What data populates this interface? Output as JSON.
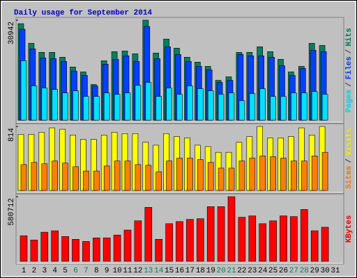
{
  "title": "Daily usage for September 2014",
  "legend_separator": "/",
  "categories": [
    "1",
    "2",
    "3",
    "4",
    "5",
    "6",
    "7",
    "8",
    "9",
    "10",
    "11",
    "12",
    "13",
    "14",
    "15",
    "16",
    "17",
    "18",
    "19",
    "20",
    "21",
    "22",
    "23",
    "24",
    "25",
    "26",
    "27",
    "28",
    "29",
    "30",
    "31"
  ],
  "category_colors": [
    "#000000",
    "#000000",
    "#000000",
    "#000000",
    "#000000",
    "#00805c",
    "#00805c",
    "#000000",
    "#000000",
    "#000000",
    "#000000",
    "#000000",
    "#00805c",
    "#00805c",
    "#000000",
    "#000000",
    "#000000",
    "#000000",
    "#000000",
    "#00805c",
    "#00805c",
    "#000000",
    "#000000",
    "#000000",
    "#000000",
    "#000000",
    "#00805c",
    "#00805c",
    "#000000",
    "#000000",
    "#000000"
  ],
  "chart_data": [
    {
      "type": "bar",
      "ylim": [
        0,
        30942
      ],
      "yticks": [
        30942
      ],
      "series": [
        {
          "name": "Hits",
          "color": "#00805c",
          "values": [
            29860,
            23800,
            20990,
            20990,
            19480,
            16450,
            14930,
            11040,
            18390,
            21210,
            21420,
            20560,
            30942,
            20770,
            25100,
            22290,
            19480,
            17960,
            16660,
            12330,
            13420,
            20990,
            20990,
            22720,
            21210,
            18830,
            14930,
            16660,
            23800,
            23150,
            null
          ]
        },
        {
          "name": "Files",
          "color": "#0040ff",
          "values": [
            28130,
            22070,
            19260,
            19040,
            18180,
            15150,
            13850,
            10600,
            17310,
            18830,
            19910,
            18180,
            29000,
            19040,
            22720,
            20340,
            18180,
            16660,
            15580,
            11690,
            12330,
            20340,
            19910,
            19910,
            19480,
            16880,
            13850,
            16010,
            21640,
            21210,
            null
          ]
        },
        {
          "name": "Pages",
          "color": "#00e0ff",
          "values": [
            18390,
            10600,
            9950,
            9520,
            8440,
            9090,
            7360,
            7360,
            8440,
            8010,
            8440,
            10820,
            11690,
            7360,
            9950,
            8010,
            10600,
            9740,
            9090,
            8010,
            8440,
            6060,
            8220,
            9740,
            7360,
            7360,
            8440,
            8440,
            8870,
            8010,
            null
          ]
        }
      ]
    },
    {
      "type": "bar",
      "ylim": [
        0,
        814
      ],
      "yticks": [
        814
      ],
      "series": [
        {
          "name": "Visits",
          "color": "#ffff00",
          "values": [
            714,
            714,
            741,
            796,
            778,
            705,
            650,
            650,
            705,
            741,
            723,
            723,
            613,
            576,
            723,
            686,
            668,
            576,
            558,
            485,
            485,
            613,
            686,
            814,
            668,
            668,
            686,
            796,
            705,
            814,
            null
          ]
        },
        {
          "name": "Sites",
          "color": "#ff8000",
          "values": [
            329,
            357,
            339,
            375,
            348,
            302,
            247,
            247,
            311,
            375,
            375,
            329,
            320,
            238,
            375,
            412,
            412,
            393,
            357,
            284,
            284,
            375,
            412,
            439,
            430,
            412,
            375,
            375,
            439,
            485,
            null
          ]
        }
      ]
    },
    {
      "type": "bar",
      "ylim": [
        0,
        580712
      ],
      "yticks": [
        580712
      ],
      "series": [
        {
          "name": "KBytes",
          "color": "#ff0000",
          "values": [
            229700,
            191400,
            261600,
            274400,
            223300,
            197800,
            178700,
            210600,
            210600,
            236100,
            280800,
            363700,
            485000,
            197800,
            338200,
            357300,
            376500,
            382900,
            491300,
            491300,
            580712,
            395600,
            408400,
            338200,
            363700,
            408400,
            402000,
            465800,
            274400,
            306300,
            null
          ]
        }
      ]
    }
  ]
}
